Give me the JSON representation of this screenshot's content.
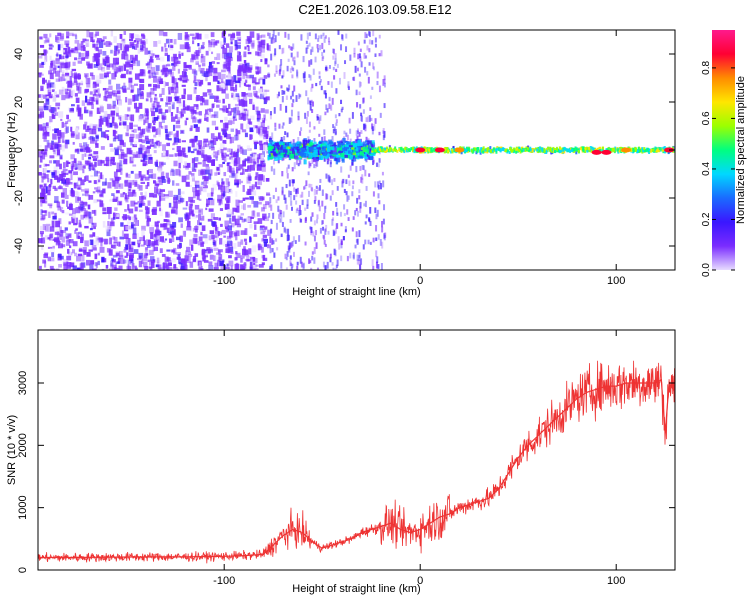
{
  "title": "C2E1.2026.103.09.58.E12",
  "colors": {
    "snr_line": "#ee3333",
    "spectrogram_background": "#ffffff",
    "colormap": [
      "#e7dcff",
      "#7a2cff",
      "#3a16ff",
      "#1a6bff",
      "#00d8ff",
      "#00ff80",
      "#9cff00",
      "#ffe600",
      "#ff8c00",
      "#ff0033",
      "#ff1a8c"
    ]
  },
  "chart_data": [
    {
      "type": "heatmap",
      "xlabel": "Height of straight line (km)",
      "ylabel": "Frequency (Hz)",
      "xlim": [
        -195,
        130
      ],
      "ylim": [
        -50,
        50
      ],
      "xticks": [
        -100,
        0,
        100
      ],
      "xtick_labels": [
        "-100",
        "0",
        "100"
      ],
      "yticks": [
        -40,
        -20,
        0,
        20,
        40
      ],
      "ytick_labels": [
        "-40",
        "-20",
        "0",
        "20",
        "40"
      ],
      "colorbar": {
        "label": "Normalized spectral amplitude",
        "range": [
          0,
          0.95
        ],
        "ticks": [
          0.0,
          0.2,
          0.4,
          0.6,
          0.8
        ],
        "tick_labels": [
          "0.0",
          "0.2",
          "0.4",
          "0.6",
          "0.8"
        ]
      },
      "regions": [
        {
          "x": [
            -195,
            -78
          ],
          "freq": [
            -50,
            50
          ],
          "amplitude": 0.12,
          "pattern": "scattered noise"
        },
        {
          "x": [
            -78,
            -25
          ],
          "freq": [
            -10,
            10
          ],
          "amplitude": 0.25,
          "pattern": "broadening signal"
        },
        {
          "x": [
            -25,
            130
          ],
          "freq": [
            -3,
            3
          ],
          "amplitude": 0.7,
          "pattern": "narrow carrier line"
        }
      ],
      "peaks": [
        {
          "x": 0,
          "freq": 0,
          "amplitude": 0.9
        },
        {
          "x": 10,
          "freq": 0,
          "amplitude": 0.85
        },
        {
          "x": 20,
          "freq": 0,
          "amplitude": 0.8
        },
        {
          "x": 90,
          "freq": -1,
          "amplitude": 0.85
        },
        {
          "x": 95,
          "freq": -1,
          "amplitude": 0.85
        },
        {
          "x": 105,
          "freq": 0,
          "amplitude": 0.8
        },
        {
          "x": 127,
          "freq": 0,
          "amplitude": 0.9
        }
      ]
    },
    {
      "type": "line",
      "xlabel": "Height of straight line (km)",
      "ylabel": "SNR (10 * v/v)",
      "xlim": [
        -195,
        130
      ],
      "ylim": [
        0,
        3850
      ],
      "xticks": [
        -100,
        0,
        100
      ],
      "xtick_labels": [
        "-100",
        "0",
        "100"
      ],
      "yticks": [
        0,
        1000,
        2000,
        3000
      ],
      "ytick_labels": [
        "0",
        "1000",
        "2000",
        "3000"
      ],
      "series": [
        {
          "x": [
            -195,
            -180,
            -160,
            -140,
            -120,
            -100,
            -90,
            -80,
            -75,
            -70,
            -65,
            -60,
            -55,
            -50,
            -45,
            -40,
            -35,
            -30,
            -25,
            -20,
            -15,
            -10,
            -5,
            0,
            5,
            10,
            15,
            20,
            25,
            30,
            35,
            40,
            45,
            50,
            55,
            60,
            65,
            70,
            75,
            80,
            85,
            90,
            95,
            100,
            105,
            110,
            115,
            120,
            123,
            125,
            127,
            130
          ],
          "values": [
            200,
            200,
            205,
            210,
            210,
            220,
            230,
            250,
            400,
            550,
            650,
            600,
            450,
            350,
            400,
            450,
            500,
            600,
            650,
            700,
            750,
            650,
            600,
            650,
            750,
            850,
            900,
            1000,
            1050,
            1100,
            1150,
            1300,
            1550,
            1800,
            2000,
            2150,
            2300,
            2450,
            2600,
            2750,
            2850,
            2900,
            2950,
            2950,
            3000,
            3000,
            3000,
            3000,
            3050,
            2200,
            3000,
            2850
          ]
        }
      ]
    }
  ]
}
